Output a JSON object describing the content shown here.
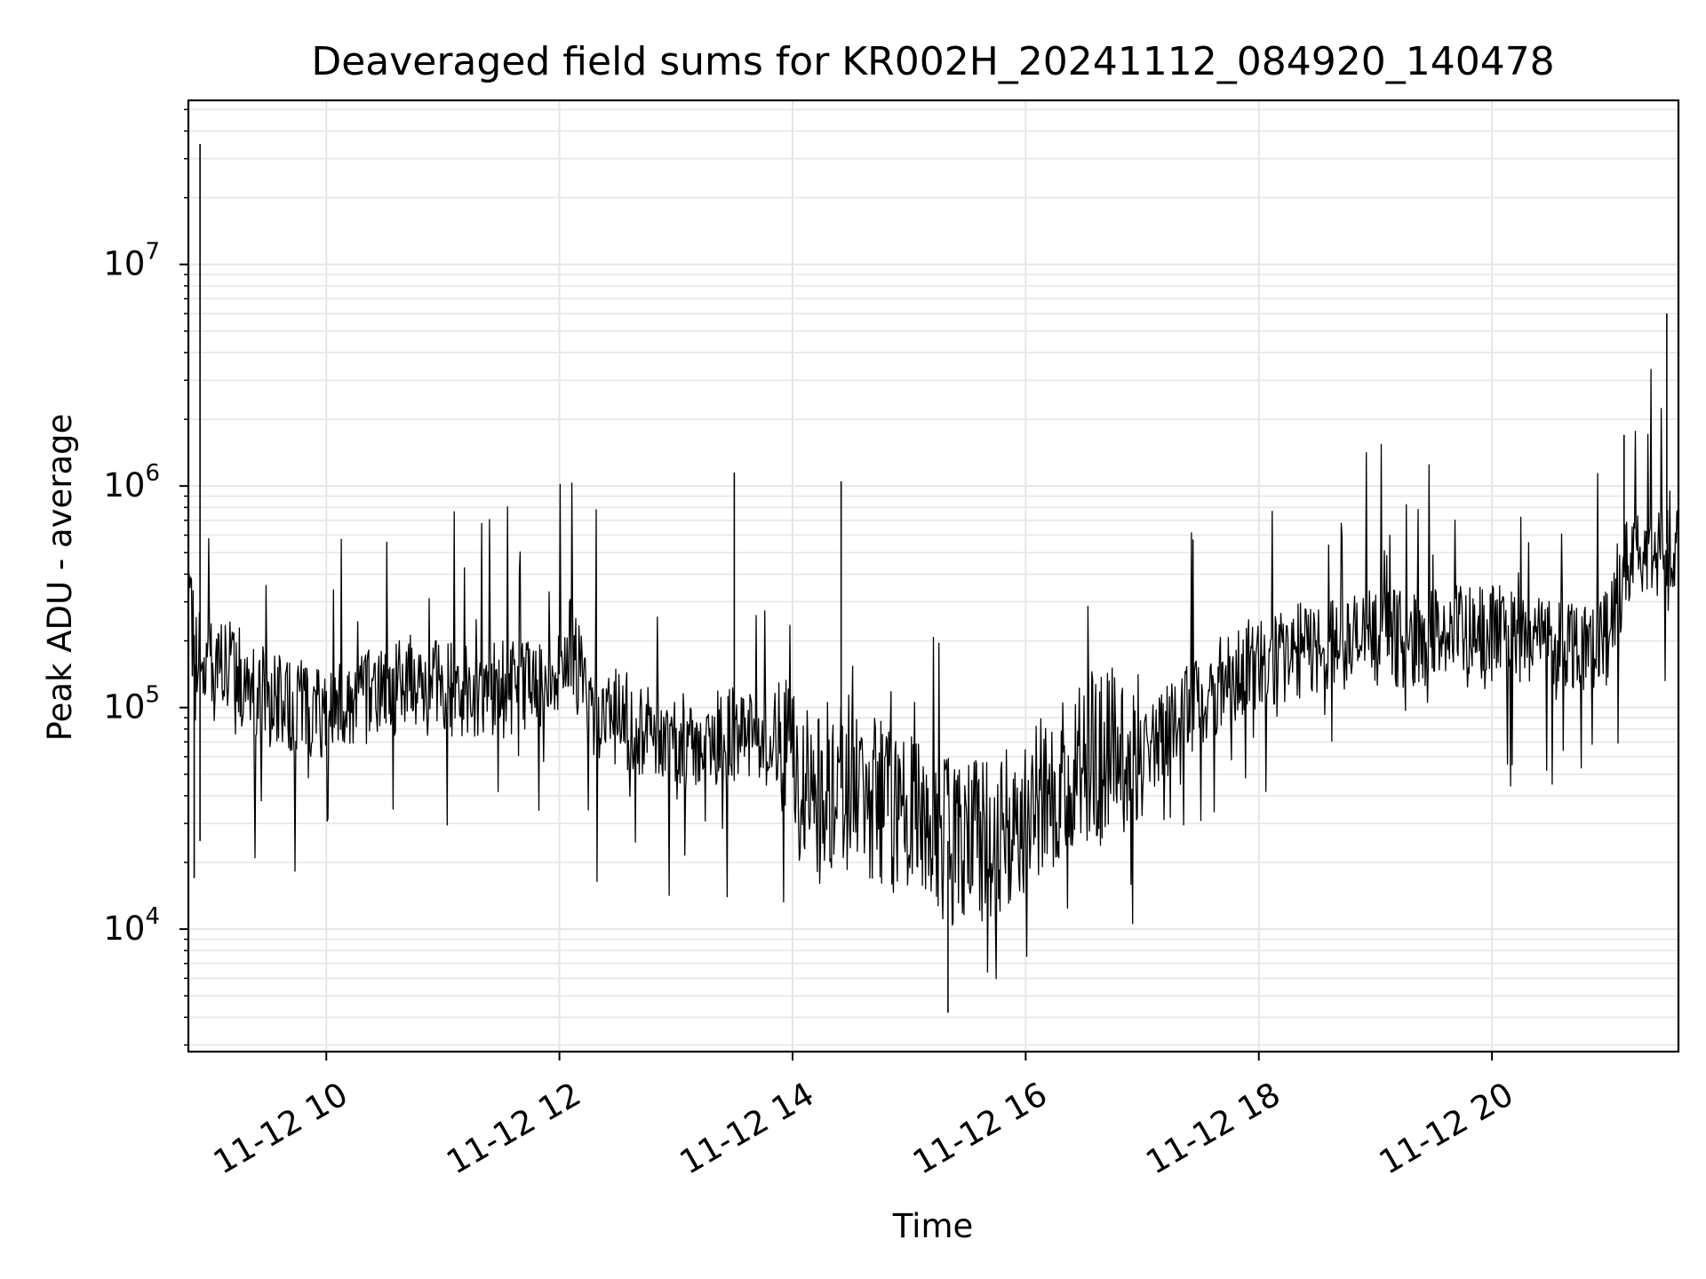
{
  "chart_data": {
    "type": "line",
    "title": "Deaveraged field sums for KR002H_20241112_084920_140478",
    "xlabel": "Time",
    "ylabel": "Peak ADU - average",
    "yscale": "log",
    "ylim": [
      2800,
      55000000
    ],
    "xlim": [
      "2024-11-12T08:49",
      "2024-11-12T21:36"
    ],
    "grid": true,
    "line_color": "#000000",
    "grid_color": "#e6e6e6",
    "x_ticks": [
      {
        "value": "2024-11-12T10:00",
        "label": "11-12 10"
      },
      {
        "value": "2024-11-12T12:00",
        "label": "11-12 12"
      },
      {
        "value": "2024-11-12T14:00",
        "label": "11-12 14"
      },
      {
        "value": "2024-11-12T16:00",
        "label": "11-12 16"
      },
      {
        "value": "2024-11-12T18:00",
        "label": "11-12 18"
      },
      {
        "value": "2024-11-12T20:00",
        "label": "11-12 20"
      }
    ],
    "y_ticks": [
      {
        "value": 10000,
        "base": "10",
        "exp": "4"
      },
      {
        "value": 100000,
        "base": "10",
        "exp": "5"
      },
      {
        "value": 1000000,
        "base": "10",
        "exp": "6"
      },
      {
        "value": 10000000,
        "base": "10",
        "exp": "7"
      }
    ],
    "series": [
      {
        "x": [
          "2024-11-12T08:49",
          "2024-11-12T08:55",
          "2024-11-12T09:00",
          "2024-11-12T09:05",
          "2024-11-12T09:10",
          "2024-11-12T09:20",
          "2024-11-12T09:30",
          "2024-11-12T09:40",
          "2024-11-12T09:50",
          "2024-11-12T10:00",
          "2024-11-12T10:15",
          "2024-11-12T10:30",
          "2024-11-12T10:45",
          "2024-11-12T11:00",
          "2024-11-12T11:15",
          "2024-11-12T11:30",
          "2024-11-12T11:45",
          "2024-11-12T12:00",
          "2024-11-12T12:05",
          "2024-11-12T12:15",
          "2024-11-12T12:30",
          "2024-11-12T12:45",
          "2024-11-12T13:00",
          "2024-11-12T13:15",
          "2024-11-12T13:30",
          "2024-11-12T13:45",
          "2024-11-12T13:55",
          "2024-11-12T14:05",
          "2024-11-12T14:20",
          "2024-11-12T14:35",
          "2024-11-12T14:50",
          "2024-11-12T15:05",
          "2024-11-12T15:20",
          "2024-11-12T15:35",
          "2024-11-12T15:50",
          "2024-11-12T16:05",
          "2024-11-12T16:20",
          "2024-11-12T16:35",
          "2024-11-12T16:50",
          "2024-11-12T17:05",
          "2024-11-12T17:20",
          "2024-11-12T17:35",
          "2024-11-12T17:50",
          "2024-11-12T18:05",
          "2024-11-12T18:20",
          "2024-11-12T18:35",
          "2024-11-12T18:50",
          "2024-11-12T19:05",
          "2024-11-12T19:20",
          "2024-11-12T19:35",
          "2024-11-12T19:50",
          "2024-11-12T20:05",
          "2024-11-12T20:20",
          "2024-11-12T20:35",
          "2024-11-12T20:50",
          "2024-11-12T21:00",
          "2024-11-12T21:10",
          "2024-11-12T21:20",
          "2024-11-12T21:30",
          "2024-11-12T21:36"
        ],
        "y": [
          250000,
          180000,
          170000,
          160000,
          150000,
          130000,
          110000,
          100000,
          100000,
          95000,
          110000,
          120000,
          130000,
          130000,
          110000,
          120000,
          130000,
          140000,
          200000,
          100000,
          90000,
          80000,
          70000,
          70000,
          75000,
          70000,
          60000,
          40000,
          45000,
          40000,
          35000,
          30000,
          25000,
          25000,
          28000,
          40000,
          50000,
          60000,
          65000,
          70000,
          90000,
          120000,
          150000,
          160000,
          180000,
          190000,
          200000,
          210000,
          200000,
          220000,
          210000,
          220000,
          210000,
          200000,
          200000,
          210000,
          450000,
          500000,
          550000,
          500000
        ]
      }
    ],
    "spikes": [
      {
        "x": "2024-11-12T08:55",
        "y": 35000000
      },
      {
        "x": "2024-11-12T08:55",
        "y": 25000
      },
      {
        "x": "2024-11-12T08:52",
        "y": 17000
      },
      {
        "x": "2024-11-12T15:20",
        "y": 4200
      },
      {
        "x": "2024-11-12T21:30",
        "y": 6000000
      },
      {
        "x": "2024-11-12T21:08",
        "y": 1700000
      },
      {
        "x": "2024-11-12T13:30",
        "y": 1150000
      },
      {
        "x": "2024-11-12T14:25",
        "y": 1050000
      }
    ]
  }
}
